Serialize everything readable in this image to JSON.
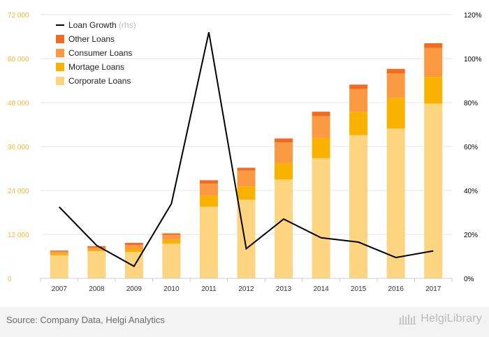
{
  "chart_data": {
    "type": "bar",
    "stacked": true,
    "categories": [
      "2007",
      "2008",
      "2009",
      "2010",
      "2011",
      "2012",
      "2013",
      "2014",
      "2015",
      "2016",
      "2017"
    ],
    "series": [
      {
        "name": "Corporate Loans",
        "color": "#fdd580",
        "values": [
          6300,
          7400,
          7200,
          9500,
          19600,
          21500,
          27000,
          32800,
          39100,
          40900,
          47700
        ]
      },
      {
        "name": "Mortage Loans",
        "color": "#f9b200",
        "values": [
          500,
          400,
          800,
          1000,
          3000,
          3600,
          4500,
          5500,
          6400,
          8300,
          7300
        ]
      },
      {
        "name": "Consumer Loans",
        "color": "#fc9a43",
        "values": [
          500,
          600,
          1100,
          1400,
          3300,
          4300,
          5600,
          6000,
          6200,
          6800,
          7900
        ]
      },
      {
        "name": "Other Loans",
        "color": "#f26b22",
        "values": [
          300,
          400,
          600,
          400,
          900,
          800,
          1100,
          1200,
          1200,
          1200,
          1300
        ]
      }
    ],
    "line_series": {
      "name": "Loan Growth",
      "suffix": "(rhs)",
      "color": "#000000",
      "values": [
        32.5,
        15.0,
        5.5,
        34.0,
        112.0,
        13.5,
        27.0,
        18.5,
        16.5,
        9.5,
        12.5
      ]
    },
    "left_axis": {
      "ylim": [
        0,
        72000
      ],
      "ticks": [
        0,
        12000,
        24000,
        36000,
        48000,
        60000,
        72000
      ],
      "tick_labels": [
        "0",
        "12 000",
        "24 000",
        "36 000",
        "48 000",
        "60 000",
        "72 000"
      ],
      "tick_color": "#f5b830"
    },
    "right_axis": {
      "ylim": [
        0,
        120
      ],
      "ticks": [
        0,
        20,
        40,
        60,
        80,
        100,
        120
      ],
      "tick_labels": [
        "0%",
        "20%",
        "40%",
        "60%",
        "80%",
        "100%",
        "120%"
      ]
    },
    "grid": true,
    "legend_position": "top-left"
  },
  "footer": {
    "source": "Source: Company Data, Helgi Analytics",
    "brand": "HelgiLibrary"
  }
}
